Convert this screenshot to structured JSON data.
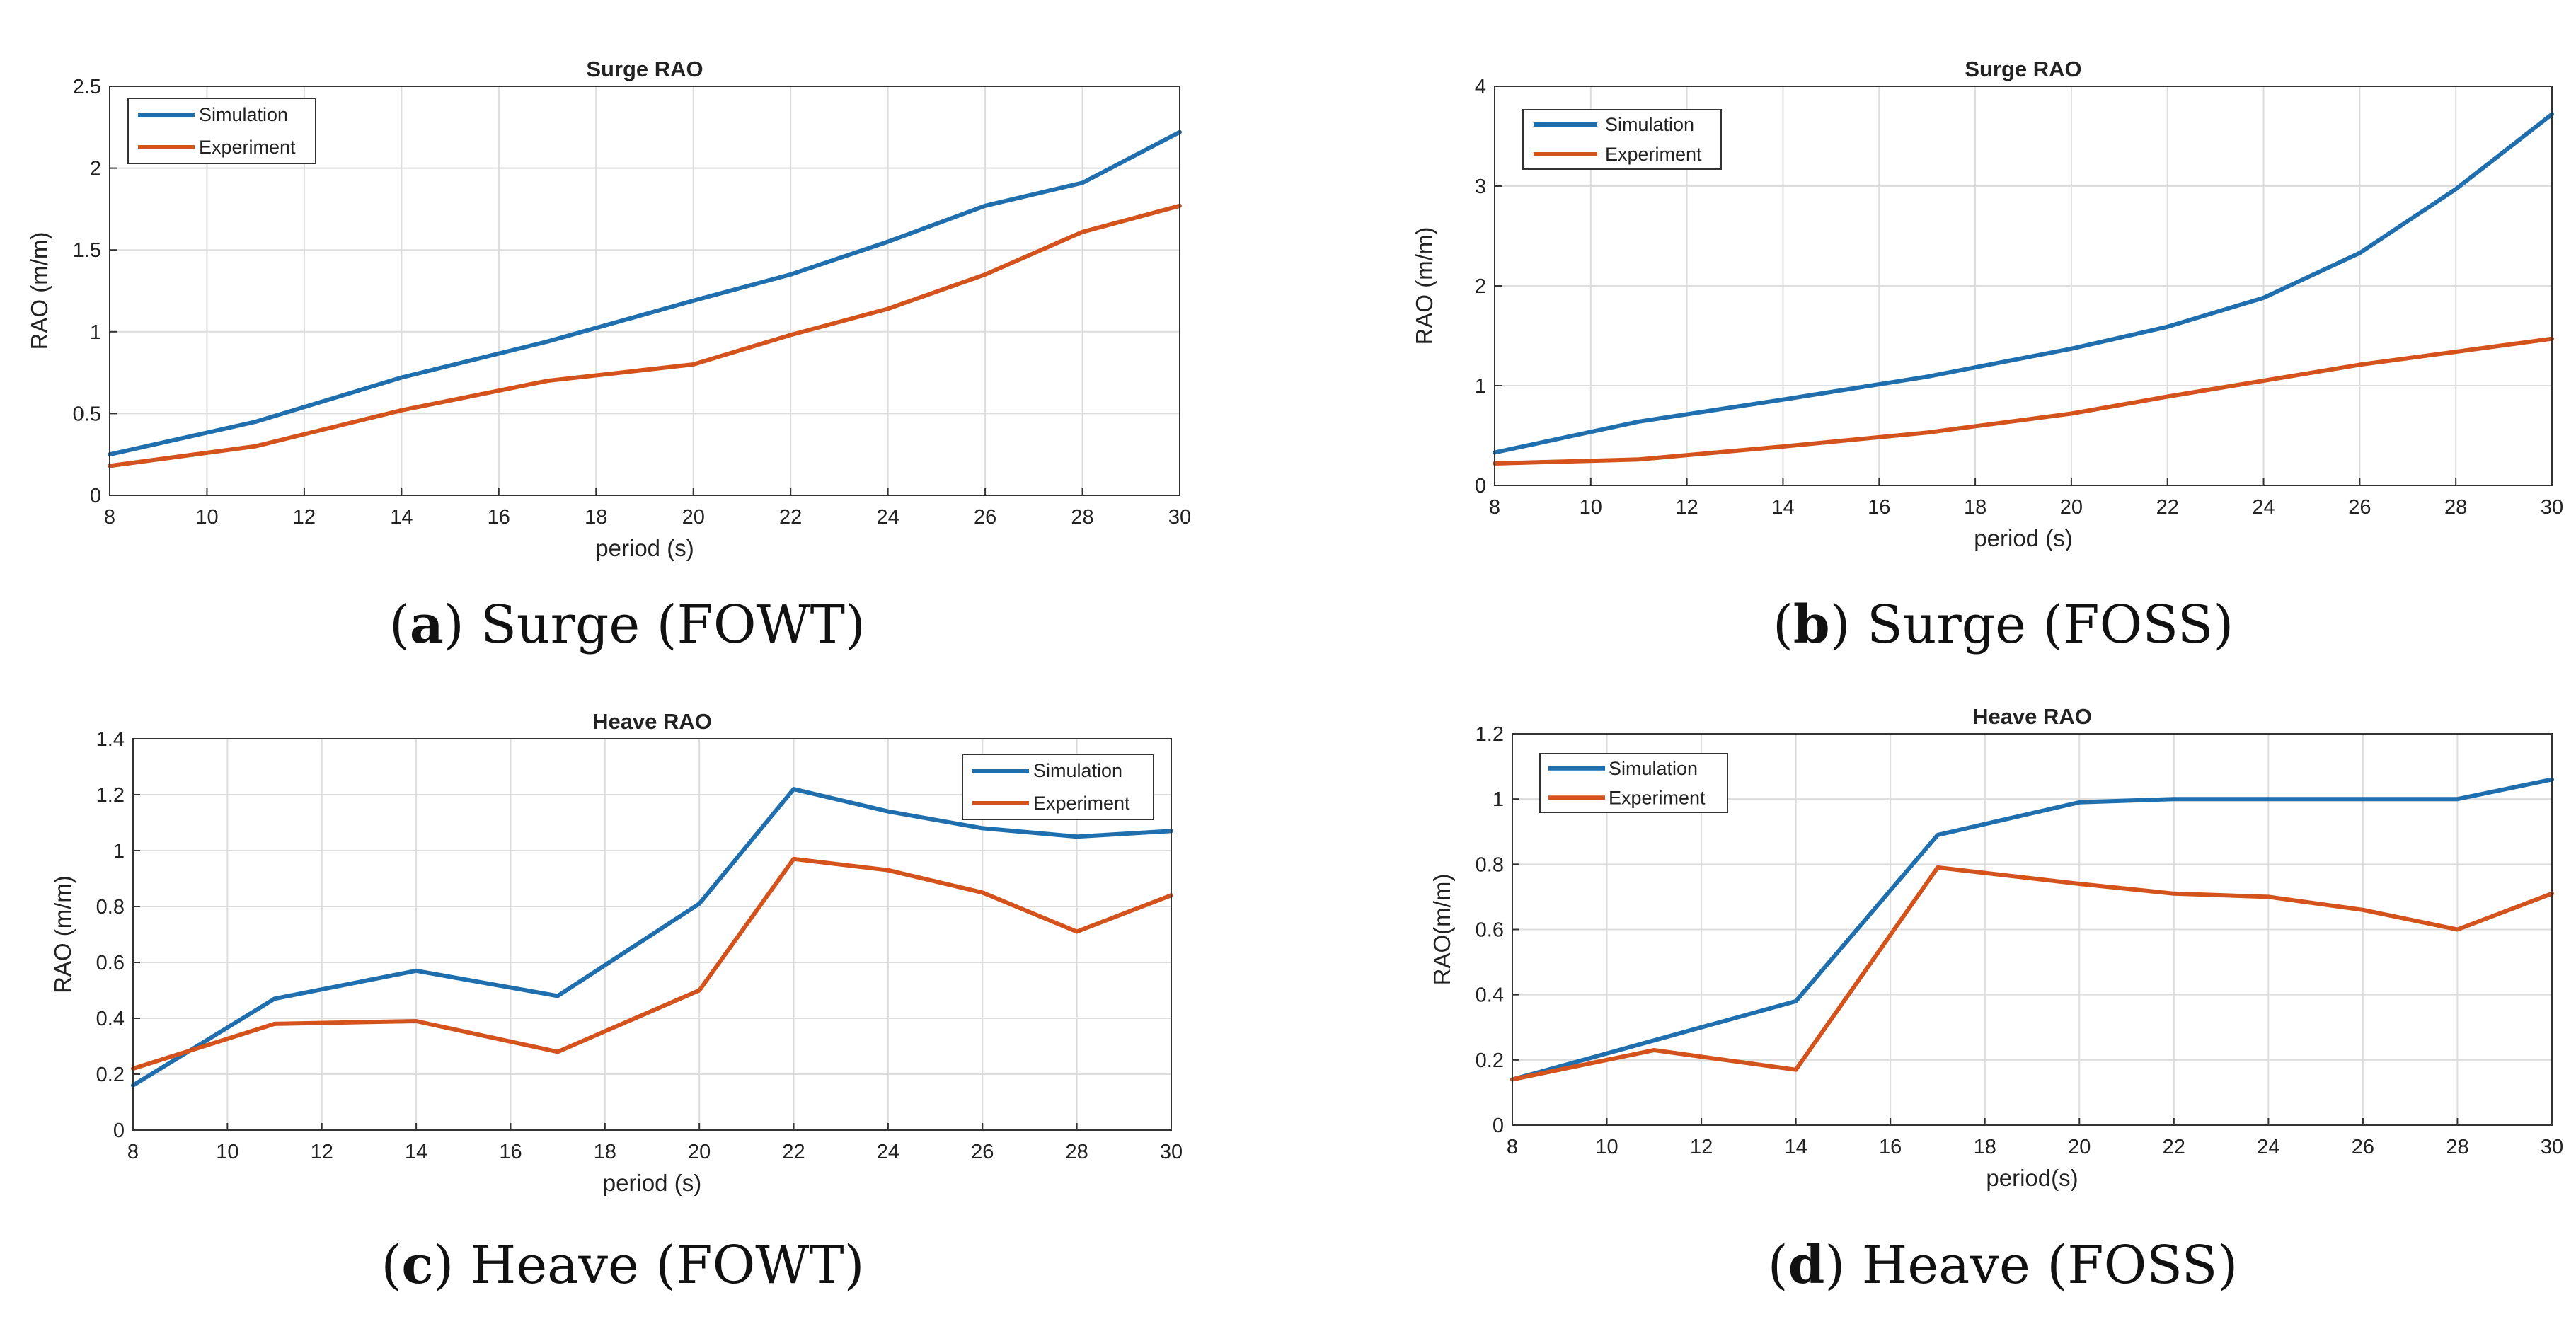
{
  "colors": {
    "simulation": "#1f6fae",
    "experiment": "#d4531c",
    "axis": "#333333",
    "grid": "#dddddd",
    "background": "#ffffff"
  },
  "captions": [
    {
      "letter": "a",
      "text": " Surge (FOWT)"
    },
    {
      "letter": "b",
      "text": " Surge (FOSS)"
    },
    {
      "letter": "c",
      "text": " Heave (FOWT)"
    },
    {
      "letter": "d",
      "text": " Heave (FOSS)"
    }
  ],
  "chart_data": [
    {
      "id": "a",
      "type": "line",
      "title": "Surge RAO",
      "xlabel": "period (s)",
      "ylabel": "RAO (m/m)",
      "xlim": [
        8,
        30
      ],
      "ylim": [
        0,
        2.5
      ],
      "xticks": [
        8,
        10,
        12,
        14,
        16,
        18,
        20,
        22,
        24,
        26,
        28,
        30
      ],
      "xtick_labels": [
        "8",
        "10",
        "12",
        "14",
        "16",
        "18",
        "20",
        "22",
        "24",
        "26",
        "28",
        "30"
      ],
      "yticks": [
        0,
        0.5,
        1,
        1.5,
        2,
        2.5
      ],
      "ytick_labels": [
        "0",
        "0.5",
        "1",
        "1.5",
        "2",
        "2.5"
      ],
      "grid": true,
      "legend_position": "top-left",
      "x": [
        8,
        11,
        14,
        17,
        20,
        22,
        24,
        26,
        28,
        30
      ],
      "series": [
        {
          "name": "Simulation",
          "color_key": "simulation",
          "values": [
            0.25,
            0.45,
            0.72,
            0.94,
            1.19,
            1.35,
            1.55,
            1.77,
            1.91,
            2.22
          ]
        },
        {
          "name": "Experiment",
          "color_key": "experiment",
          "values": [
            0.18,
            0.3,
            0.52,
            0.7,
            0.8,
            0.98,
            1.14,
            1.35,
            1.61,
            1.77
          ]
        }
      ]
    },
    {
      "id": "b",
      "type": "line",
      "title": "Surge RAO",
      "xlabel": "period (s)",
      "ylabel": "RAO (m/m)",
      "xlim": [
        8,
        30
      ],
      "ylim": [
        0,
        4
      ],
      "xticks": [
        8,
        10,
        12,
        14,
        16,
        18,
        20,
        22,
        24,
        26,
        28,
        30
      ],
      "xtick_labels": [
        "8",
        "10",
        "12",
        "14",
        "16",
        "18",
        "20",
        "22",
        "24",
        "26",
        "28",
        "30"
      ],
      "yticks": [
        0,
        1,
        2,
        3,
        4
      ],
      "ytick_labels": [
        "0",
        "1",
        "2",
        "3",
        "4"
      ],
      "grid": true,
      "legend_position": "top-left",
      "x": [
        8,
        11,
        14,
        17,
        20,
        22,
        24,
        26,
        28,
        30
      ],
      "series": [
        {
          "name": "Simulation",
          "color_key": "simulation",
          "values": [
            0.33,
            0.64,
            0.86,
            1.09,
            1.37,
            1.59,
            1.88,
            2.33,
            2.97,
            3.72
          ]
        },
        {
          "name": "Experiment",
          "color_key": "experiment",
          "values": [
            0.22,
            0.26,
            0.39,
            0.53,
            0.72,
            0.89,
            1.05,
            1.21,
            1.34,
            1.47
          ]
        }
      ]
    },
    {
      "id": "c",
      "type": "line",
      "title": "Heave RAO",
      "xlabel": "period (s)",
      "ylabel": "RAO (m/m)",
      "xlim": [
        8,
        30
      ],
      "ylim": [
        0,
        1.4
      ],
      "xticks": [
        8,
        10,
        12,
        14,
        16,
        18,
        20,
        22,
        24,
        26,
        28,
        30
      ],
      "xtick_labels": [
        "8",
        "10",
        "12",
        "14",
        "16",
        "18",
        "20",
        "22",
        "24",
        "26",
        "28",
        "30"
      ],
      "yticks": [
        0,
        0.2,
        0.4,
        0.6,
        0.8,
        1,
        1.2,
        1.4
      ],
      "ytick_labels": [
        "0",
        "0.2",
        "0.4",
        "0.6",
        "0.8",
        "1",
        "1.2",
        "1.4"
      ],
      "grid": true,
      "legend_position": "top-right",
      "x": [
        8,
        11,
        14,
        17,
        20,
        22,
        24,
        26,
        28,
        30
      ],
      "series": [
        {
          "name": "Simulation",
          "color_key": "simulation",
          "values": [
            0.16,
            0.47,
            0.57,
            0.48,
            0.81,
            1.22,
            1.14,
            1.08,
            1.05,
            1.07
          ]
        },
        {
          "name": "Experiment",
          "color_key": "experiment",
          "values": [
            0.22,
            0.38,
            0.39,
            0.28,
            0.5,
            0.97,
            0.93,
            0.85,
            0.71,
            0.84
          ]
        }
      ]
    },
    {
      "id": "d",
      "type": "line",
      "title": "Heave RAO",
      "xlabel": "period(s)",
      "ylabel": "RAO(m/m)",
      "xlim": [
        8,
        30
      ],
      "ylim": [
        0,
        1.2
      ],
      "xticks": [
        8,
        10,
        12,
        14,
        16,
        18,
        20,
        22,
        24,
        26,
        28,
        30
      ],
      "xtick_labels": [
        "8",
        "10",
        "12",
        "14",
        "16",
        "18",
        "20",
        "22",
        "24",
        "26",
        "28",
        "30"
      ],
      "yticks": [
        0,
        0.2,
        0.4,
        0.6,
        0.8,
        1,
        1.2
      ],
      "ytick_labels": [
        "0",
        "0.2",
        "0.4",
        "0.6",
        "0.8",
        "1",
        "1.2"
      ],
      "grid": true,
      "legend_position": "top-left",
      "x": [
        8,
        11,
        14,
        17,
        20,
        22,
        24,
        26,
        28,
        30
      ],
      "series": [
        {
          "name": "Simulation",
          "color_key": "simulation",
          "values": [
            0.14,
            0.26,
            0.38,
            0.89,
            0.99,
            1.0,
            1.0,
            1.0,
            1.0,
            1.06
          ]
        },
        {
          "name": "Experiment",
          "color_key": "experiment",
          "values": [
            0.14,
            0.23,
            0.17,
            0.79,
            0.74,
            0.71,
            0.7,
            0.66,
            0.6,
            0.71
          ]
        }
      ]
    }
  ]
}
